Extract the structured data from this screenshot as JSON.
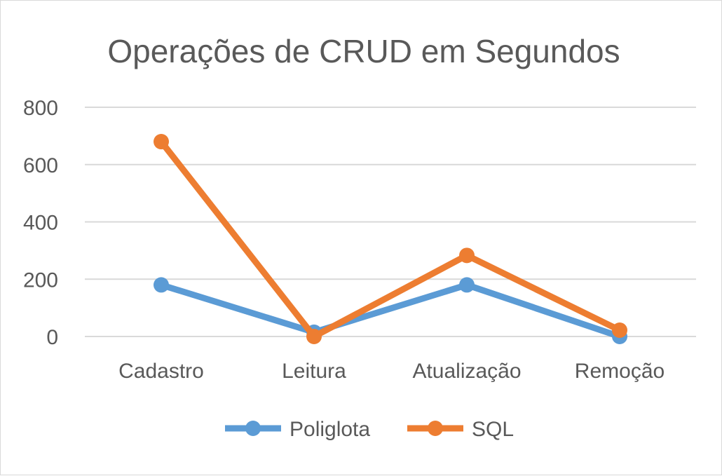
{
  "chart_data": {
    "type": "line",
    "title": "Operações de CRUD em Segundos",
    "categories": [
      "Cadastro",
      "Leitura",
      "Atualização",
      "Remoção"
    ],
    "series": [
      {
        "name": "Poliglota",
        "values": [
          180,
          15,
          180,
          0
        ],
        "color": "#5B9BD5"
      },
      {
        "name": "SQL",
        "values": [
          680,
          0,
          283,
          22
        ],
        "color": "#ED7D31"
      }
    ],
    "ylim": [
      0,
      800
    ],
    "yticks": [
      0,
      200,
      400,
      600,
      800
    ],
    "grid": true,
    "legend_position": "bottom"
  }
}
